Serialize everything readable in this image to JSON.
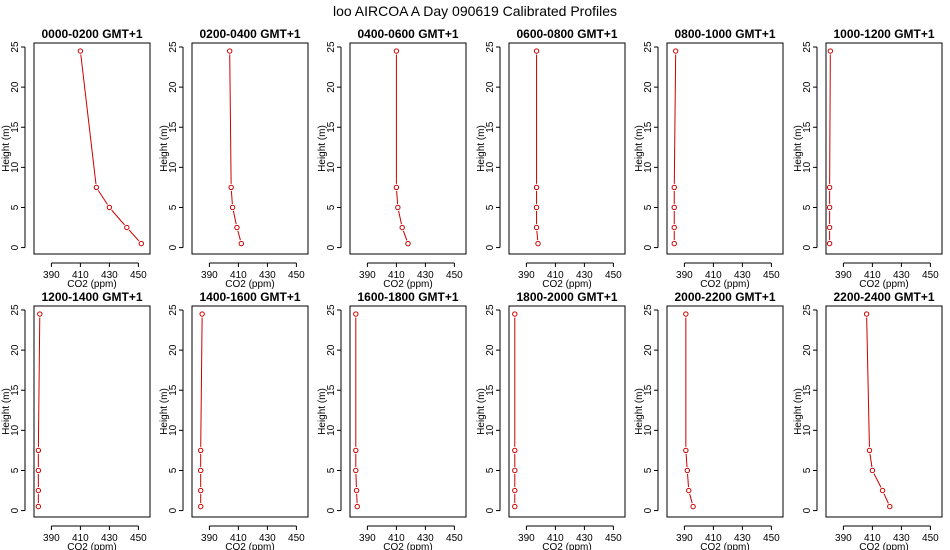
{
  "figure": {
    "title": "loo AIRCOA A  Day 090619  Calibrated Profiles"
  },
  "series_color": "#cc0000",
  "chart_data": [
    {
      "type": "line",
      "title": "0000-0200 GMT+1",
      "xlabel": "CO2 (ppm)",
      "ylabel": "Height (m)",
      "xlim": [
        378,
        458
      ],
      "ylim": [
        -0.8,
        25.5
      ],
      "xticks": [
        390,
        410,
        430,
        450
      ],
      "yticks": [
        0,
        5,
        10,
        15,
        20,
        25
      ],
      "grid": false,
      "series": [
        {
          "x": [
            452,
            442,
            430,
            421,
            410
          ],
          "y": [
            0.5,
            2.5,
            5,
            7.5,
            24.5
          ]
        }
      ]
    },
    {
      "type": "line",
      "title": "0200-0400 GMT+1",
      "xlabel": "CO2 (ppm)",
      "ylabel": "Height (m)",
      "xlim": [
        378,
        458
      ],
      "ylim": [
        -0.8,
        25.5
      ],
      "xticks": [
        390,
        410,
        430,
        450
      ],
      "yticks": [
        0,
        5,
        10,
        15,
        20,
        25
      ],
      "grid": false,
      "series": [
        {
          "x": [
            412,
            409,
            406,
            405,
            404
          ],
          "y": [
            0.5,
            2.5,
            5,
            7.5,
            24.5
          ]
        }
      ]
    },
    {
      "type": "line",
      "title": "0400-0600 GMT+1",
      "xlabel": "CO2 (ppm)",
      "ylabel": "Height (m)",
      "xlim": [
        378,
        458
      ],
      "ylim": [
        -0.8,
        25.5
      ],
      "xticks": [
        390,
        410,
        430,
        450
      ],
      "yticks": [
        0,
        5,
        10,
        15,
        20,
        25
      ],
      "grid": false,
      "series": [
        {
          "x": [
            418,
            414,
            411,
            410,
            410
          ],
          "y": [
            0.5,
            2.5,
            5,
            7.5,
            24.5
          ]
        }
      ]
    },
    {
      "type": "line",
      "title": "0600-0800 GMT+1",
      "xlabel": "CO2 (ppm)",
      "ylabel": "Height (m)",
      "xlim": [
        378,
        458
      ],
      "ylim": [
        -0.8,
        25.5
      ],
      "xticks": [
        390,
        410,
        430,
        450
      ],
      "yticks": [
        0,
        5,
        10,
        15,
        20,
        25
      ],
      "grid": false,
      "series": [
        {
          "x": [
            398,
            397,
            397,
            397,
            397
          ],
          "y": [
            0.5,
            2.5,
            5,
            7.5,
            24.5
          ]
        }
      ]
    },
    {
      "type": "line",
      "title": "0800-1000 GMT+1",
      "xlabel": "CO2 (ppm)",
      "ylabel": "Height (m)",
      "xlim": [
        378,
        458
      ],
      "ylim": [
        -0.8,
        25.5
      ],
      "xticks": [
        390,
        410,
        430,
        450
      ],
      "yticks": [
        0,
        5,
        10,
        15,
        20,
        25
      ],
      "grid": false,
      "series": [
        {
          "x": [
            383,
            383,
            383,
            383,
            384
          ],
          "y": [
            0.5,
            2.5,
            5,
            7.5,
            24.5
          ]
        }
      ]
    },
    {
      "type": "line",
      "title": "1000-1200 GMT+1",
      "xlabel": "CO2 (ppm)",
      "ylabel": "Height (m)",
      "xlim": [
        378,
        458
      ],
      "ylim": [
        -0.8,
        25.5
      ],
      "xticks": [
        390,
        410,
        430,
        450
      ],
      "yticks": [
        0,
        5,
        10,
        15,
        20,
        25
      ],
      "grid": false,
      "series": [
        {
          "x": [
            380.5,
            380.5,
            380.5,
            380.5,
            381
          ],
          "y": [
            0.5,
            2.5,
            5,
            7.5,
            24.5
          ]
        }
      ]
    },
    {
      "type": "line",
      "title": "1200-1400 GMT+1",
      "xlabel": "CO2 (ppm)",
      "ylabel": "Height (m)",
      "xlim": [
        378,
        458
      ],
      "ylim": [
        -0.8,
        25.5
      ],
      "xticks": [
        390,
        410,
        430,
        450
      ],
      "yticks": [
        0,
        5,
        10,
        15,
        20,
        25
      ],
      "grid": false,
      "series": [
        {
          "x": [
            381,
            381,
            381,
            381,
            382
          ],
          "y": [
            0.5,
            2.5,
            5,
            7.5,
            24.5
          ]
        }
      ]
    },
    {
      "type": "line",
      "title": "1400-1600 GMT+1",
      "xlabel": "CO2 (ppm)",
      "ylabel": "Height (m)",
      "xlim": [
        378,
        458
      ],
      "ylim": [
        -0.8,
        25.5
      ],
      "xticks": [
        390,
        410,
        430,
        450
      ],
      "yticks": [
        0,
        5,
        10,
        15,
        20,
        25
      ],
      "grid": false,
      "series": [
        {
          "x": [
            384,
            384,
            384,
            384,
            385
          ],
          "y": [
            0.5,
            2.5,
            5,
            7.5,
            24.5
          ]
        }
      ]
    },
    {
      "type": "line",
      "title": "1600-1800 GMT+1",
      "xlabel": "CO2 (ppm)",
      "ylabel": "Height (m)",
      "xlim": [
        378,
        458
      ],
      "ylim": [
        -0.8,
        25.5
      ],
      "xticks": [
        390,
        410,
        430,
        450
      ],
      "yticks": [
        0,
        5,
        10,
        15,
        20,
        25
      ],
      "grid": false,
      "series": [
        {
          "x": [
            383,
            382.5,
            382,
            382,
            382
          ],
          "y": [
            0.5,
            2.5,
            5,
            7.5,
            24.5
          ]
        }
      ]
    },
    {
      "type": "line",
      "title": "1800-2000 GMT+1",
      "xlabel": "CO2 (ppm)",
      "ylabel": "Height (m)",
      "xlim": [
        378,
        458
      ],
      "ylim": [
        -0.8,
        25.5
      ],
      "xticks": [
        390,
        410,
        430,
        450
      ],
      "yticks": [
        0,
        5,
        10,
        15,
        20,
        25
      ],
      "grid": false,
      "series": [
        {
          "x": [
            382,
            382,
            382,
            382,
            382
          ],
          "y": [
            0.5,
            2.5,
            5,
            7.5,
            24.5
          ]
        }
      ]
    },
    {
      "type": "line",
      "title": "2000-2200 GMT+1",
      "xlabel": "CO2 (ppm)",
      "ylabel": "Height (m)",
      "xlim": [
        378,
        458
      ],
      "ylim": [
        -0.8,
        25.5
      ],
      "xticks": [
        390,
        410,
        430,
        450
      ],
      "yticks": [
        0,
        5,
        10,
        15,
        20,
        25
      ],
      "grid": false,
      "series": [
        {
          "x": [
            396,
            393,
            392,
            391,
            391
          ],
          "y": [
            0.5,
            2.5,
            5,
            7.5,
            24.5
          ]
        }
      ]
    },
    {
      "type": "line",
      "title": "2200-2400 GMT+1",
      "xlabel": "CO2 (ppm)",
      "ylabel": "Height (m)",
      "xlim": [
        378,
        458
      ],
      "ylim": [
        -0.8,
        25.5
      ],
      "xticks": [
        390,
        410,
        430,
        450
      ],
      "yticks": [
        0,
        5,
        10,
        15,
        20,
        25
      ],
      "grid": false,
      "series": [
        {
          "x": [
            422,
            417,
            410,
            408,
            406
          ],
          "y": [
            0.5,
            2.5,
            5,
            7.5,
            24.5
          ]
        }
      ]
    }
  ]
}
